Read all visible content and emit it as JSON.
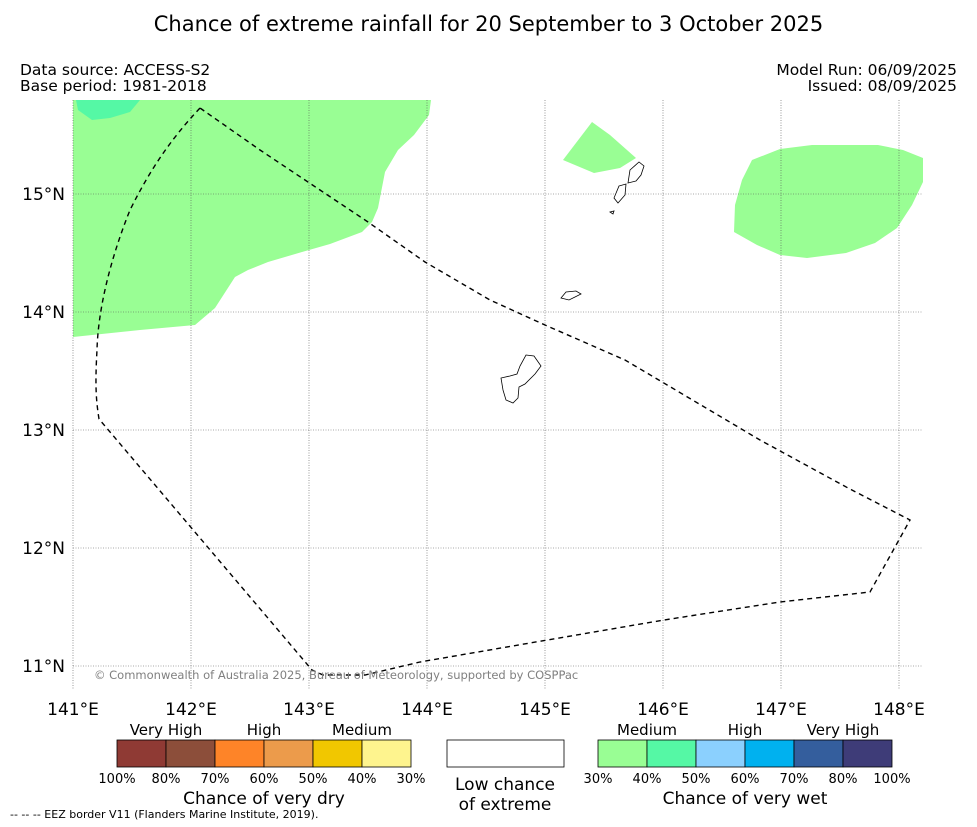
{
  "title": "Chance of extreme rainfall for 20 September to 3 October 2025",
  "data_source": "Data source: ACCESS-S2",
  "base_period": "Base period: 1981-2018",
  "model_run": "Model Run: 06/09/2025",
  "issued": "Issued: 08/09/2025",
  "copyright": "© Commonwealth of Australia 2025, Bureau of Meteorology, supported by COSPPac",
  "map": {
    "lat_labels": [
      "15°N",
      "14°N",
      "13°N",
      "12°N",
      "11°N"
    ],
    "lon_labels": [
      "141°E",
      "142°E",
      "143°E",
      "144°E",
      "145°E",
      "146°E",
      "147°E",
      "148°E"
    ],
    "gridlines": true,
    "regions": [
      {
        "name": "wet-medium",
        "color": "#99fe94"
      },
      {
        "name": "wet-high-patch",
        "color": "#55f8a5"
      }
    ]
  },
  "legend": {
    "dry": {
      "headers": [
        "Very High",
        "High",
        "Medium"
      ],
      "colors": [
        "#8f3a34",
        "#8c4e3a",
        "#fe8428",
        "#ec9b4b",
        "#f1c700",
        "#fef48e"
      ],
      "ticks": [
        "100%",
        "80%",
        "70%",
        "60%",
        "50%",
        "40%",
        "30%"
      ],
      "title": "Chance of very dry"
    },
    "low": {
      "color": "#ffffff",
      "line1": "Low chance",
      "line2": "of extreme"
    },
    "wet": {
      "headers": [
        "Medium",
        "High",
        "Very High"
      ],
      "colors": [
        "#99fe94",
        "#55f8a5",
        "#8bd0fe",
        "#00b1ef",
        "#345e9d",
        "#3e3c78"
      ],
      "ticks": [
        "30%",
        "40%",
        "50%",
        "60%",
        "70%",
        "80%",
        "100%"
      ],
      "title": "Chance of very wet"
    }
  },
  "footer": "--  --  -- EEZ border V11 (Flanders Marine Institute, 2019)."
}
